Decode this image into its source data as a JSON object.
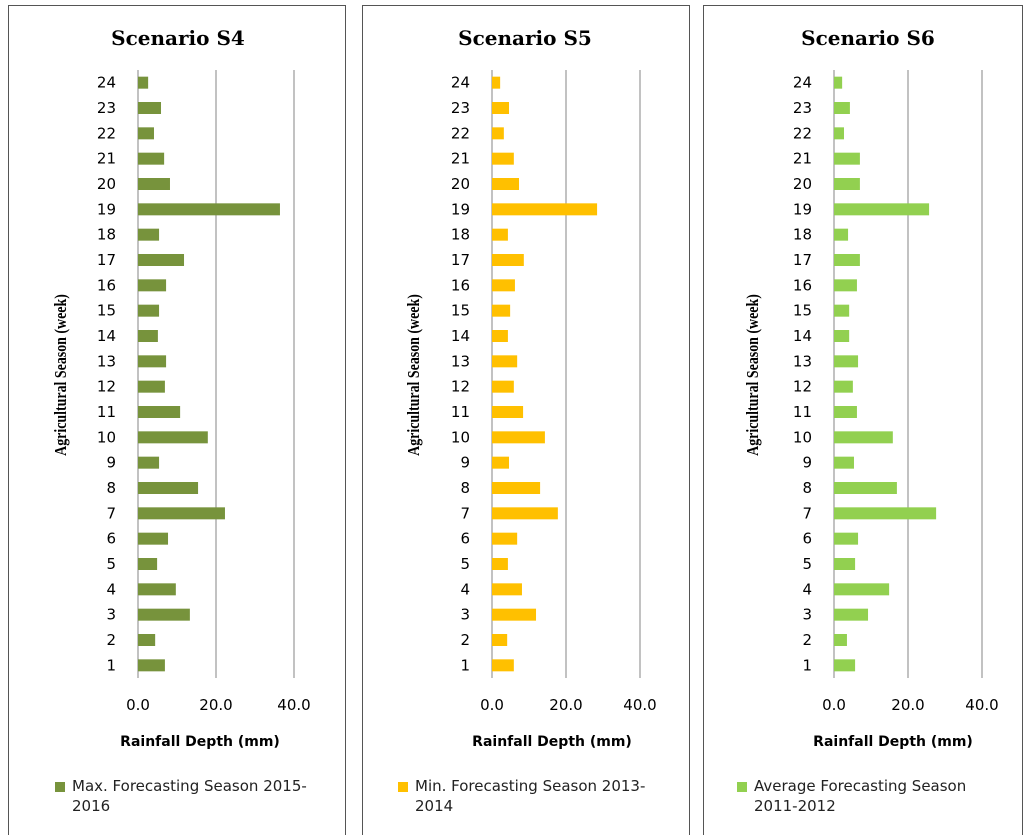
{
  "chart_data": [
    {
      "type": "bar",
      "orientation": "horizontal",
      "title": "Scenario S4",
      "x_label": "Rainfall Depth (mm)",
      "y_label": "Agricultural Season (week)",
      "categories": [
        "1",
        "2",
        "3",
        "4",
        "5",
        "6",
        "7",
        "8",
        "9",
        "10",
        "11",
        "12",
        "13",
        "14",
        "15",
        "16",
        "17",
        "18",
        "19",
        "20",
        "21",
        "22",
        "23",
        "24"
      ],
      "series": [
        {
          "name": "Max. Forecasting Season 2015-2016",
          "color": "#77933c",
          "values": [
            6.9,
            4.4,
            13.3,
            9.7,
            4.9,
            7.7,
            22.3,
            15.4,
            5.4,
            17.9,
            10.8,
            6.9,
            7.2,
            5.1,
            5.4,
            7.2,
            11.8,
            5.4,
            36.4,
            8.2,
            6.7,
            4.1,
            5.9,
            2.6
          ]
        }
      ],
      "xlim": [
        0,
        40
      ],
      "xticks": [
        {
          "value": 0,
          "label": "0.0"
        },
        {
          "value": 20,
          "label": "20.0"
        },
        {
          "value": 40,
          "label": "40.0"
        }
      ],
      "grid": true
    },
    {
      "type": "bar",
      "orientation": "horizontal",
      "title": "Scenario S5",
      "x_label": "Rainfall Depth (mm)",
      "y_label": "Agricultural Season (week)",
      "categories": [
        "1",
        "2",
        "3",
        "4",
        "5",
        "6",
        "7",
        "8",
        "9",
        "10",
        "11",
        "12",
        "13",
        "14",
        "15",
        "16",
        "17",
        "18",
        "19",
        "20",
        "21",
        "22",
        "23",
        "24"
      ],
      "series": [
        {
          "name": "Min. Forecasting Season 2013-2014",
          "color": "#ffc000",
          "values": [
            5.9,
            4.1,
            11.9,
            8.1,
            4.3,
            6.8,
            17.8,
            13.0,
            4.6,
            14.3,
            8.4,
            5.9,
            6.8,
            4.3,
            4.9,
            6.2,
            8.6,
            4.3,
            28.4,
            7.3,
            5.9,
            3.2,
            4.6,
            2.2
          ]
        }
      ],
      "xlim": [
        0,
        40
      ],
      "xticks": [
        {
          "value": 0,
          "label": "0.0"
        },
        {
          "value": 20,
          "label": "20.0"
        },
        {
          "value": 40,
          "label": "40.0"
        }
      ],
      "grid": true
    },
    {
      "type": "bar",
      "orientation": "horizontal",
      "title": "Scenario S6",
      "x_label": "Rainfall Depth (mm)",
      "y_label": "Agricultural Season (week)",
      "categories": [
        "1",
        "2",
        "3",
        "4",
        "5",
        "6",
        "7",
        "8",
        "9",
        "10",
        "11",
        "12",
        "13",
        "14",
        "15",
        "16",
        "17",
        "18",
        "19",
        "20",
        "21",
        "22",
        "23",
        "24"
      ],
      "series": [
        {
          "name": "Average Forecasting Season 2011-2012",
          "color": "#92d050",
          "values": [
            5.7,
            3.5,
            9.2,
            14.9,
            5.7,
            6.5,
            27.6,
            17.0,
            5.4,
            15.9,
            6.2,
            5.1,
            6.5,
            4.1,
            4.1,
            6.2,
            7.0,
            3.8,
            25.7,
            7.0,
            7.0,
            2.7,
            4.3,
            2.2
          ]
        }
      ],
      "xlim": [
        0,
        40
      ],
      "xticks": [
        {
          "value": 0,
          "label": "0.0"
        },
        {
          "value": 20,
          "label": "20.0"
        },
        {
          "value": 40,
          "label": "40.0"
        }
      ],
      "grid": true
    }
  ]
}
